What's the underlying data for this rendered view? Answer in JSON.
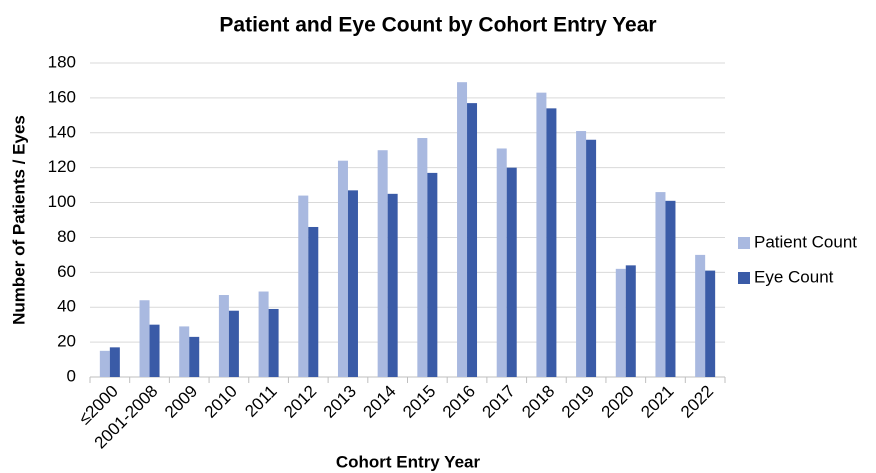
{
  "chart_data": {
    "type": "bar",
    "title": "Patient and Eye Count by Cohort Entry Year",
    "x_label": "Cohort Entry Year",
    "y_label": "Number of Patients / Eyes",
    "categories": [
      "≤2000",
      "2001-2008",
      "2009",
      "2010",
      "2011",
      "2012",
      "2013",
      "2014",
      "2015",
      "2016",
      "2017",
      "2018",
      "2019",
      "2020",
      "2021",
      "2022"
    ],
    "series": [
      {
        "name": "Patient Count",
        "color": "#a9b9e0",
        "values": [
          15,
          44,
          29,
          47,
          49,
          104,
          124,
          130,
          137,
          169,
          131,
          163,
          141,
          62,
          106,
          70
        ]
      },
      {
        "name": "Eye Count",
        "color": "#3a5ba7",
        "values": [
          17,
          30,
          23,
          38,
          39,
          86,
          107,
          105,
          117,
          157,
          120,
          154,
          136,
          64,
          101,
          61
        ]
      }
    ],
    "ylim": [
      0,
      180
    ],
    "yticks": [
      0,
      20,
      40,
      60,
      80,
      100,
      120,
      140,
      160,
      180
    ],
    "grid": true,
    "legend": "right"
  }
}
